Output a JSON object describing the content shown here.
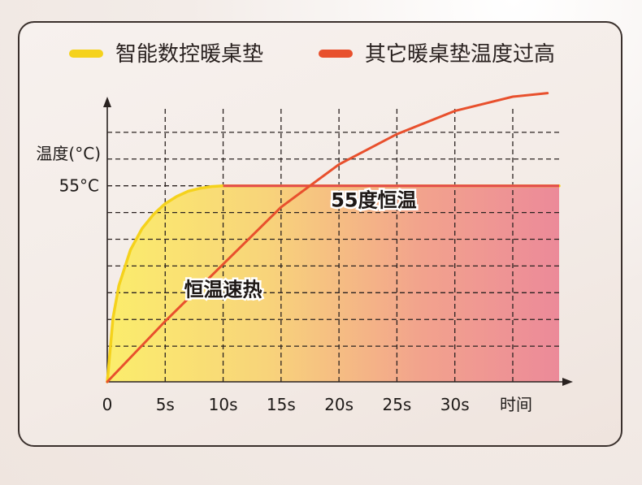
{
  "chart_data": {
    "type": "line",
    "title": "",
    "ylabel": "温度(°C)",
    "xlabel": "时间",
    "x_ticks": [
      "0",
      "5s",
      "10s",
      "15s",
      "20s",
      "25s",
      "30s"
    ],
    "x_tick_values": [
      0,
      5,
      10,
      15,
      20,
      25,
      30
    ],
    "y_ticks": [
      "55°C"
    ],
    "y_tick_values": [
      55
    ],
    "xlim": [
      0,
      39
    ],
    "ylim": [
      0,
      80
    ],
    "grid": true,
    "legend_position": "top",
    "series": [
      {
        "name": "智能数控暖桌垫",
        "color": "#f5d21c",
        "x": [
          0,
          0.5,
          1,
          2,
          3,
          4,
          5,
          6,
          7,
          8,
          9,
          10,
          12,
          15,
          20,
          25,
          30,
          35,
          39
        ],
        "y": [
          0,
          18,
          27,
          37,
          43,
          47,
          50,
          52,
          53.5,
          54.3,
          54.8,
          55,
          55,
          55,
          55,
          55,
          55,
          55,
          55
        ]
      },
      {
        "name": "其它暖桌垫温度过高",
        "color": "#e8502d",
        "x": [
          0,
          5,
          10,
          15,
          20,
          25,
          30,
          35,
          38
        ],
        "y": [
          0,
          17,
          33,
          49,
          61,
          69.5,
          76,
          80,
          81
        ]
      }
    ],
    "annotations": [
      {
        "text": "55度恒温",
        "x": 23,
        "y": 50
      },
      {
        "text": "恒温速热",
        "x": 10,
        "y": 25
      }
    ]
  }
}
